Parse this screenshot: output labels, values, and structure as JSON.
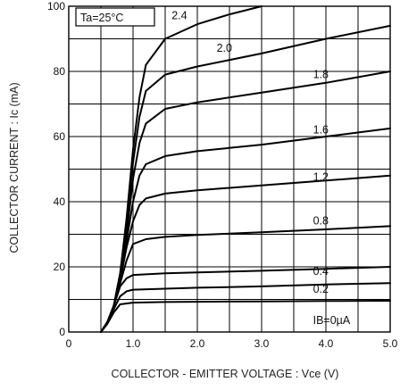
{
  "chart_data": {
    "type": "line",
    "ylabel": "COLLECTOR CURRENT : Ic (mA)",
    "xlabel": "COLLECTOR - EMITTER VOLTAGE : Vce (V)",
    "annotation": "Ta=25°C",
    "xlim": [
      0,
      5.0
    ],
    "ylim": [
      0,
      100
    ],
    "x_ticks": [
      "0",
      "1.0",
      "2.0",
      "3.0",
      "4.0",
      "5.0"
    ],
    "y_ticks": [
      "0",
      "20",
      "40",
      "60",
      "80",
      "100"
    ],
    "grid": true,
    "series": [
      {
        "label": "IB=0µA",
        "x": [
          0.5,
          0.6,
          0.7,
          0.8,
          1.0,
          1.5,
          2.0,
          3.0,
          4.0,
          5.0
        ],
        "y": [
          0,
          2.5,
          6,
          8.5,
          9.0,
          9.2,
          9.3,
          9.4,
          9.5,
          9.6
        ]
      },
      {
        "label": "0.2",
        "x": [
          0.5,
          0.6,
          0.7,
          0.8,
          0.9,
          1.0,
          1.5,
          2.0,
          3.0,
          4.0,
          5.0
        ],
        "y": [
          0,
          2.5,
          7,
          11,
          12.5,
          13.0,
          13.3,
          13.6,
          14.0,
          14.6,
          15.0
        ]
      },
      {
        "label": "0.4",
        "x": [
          0.5,
          0.6,
          0.7,
          0.8,
          0.9,
          1.0,
          1.5,
          2.0,
          3.0,
          4.0,
          5.0
        ],
        "y": [
          0,
          3,
          8,
          14,
          16.5,
          17.5,
          18.0,
          18.3,
          18.8,
          19.4,
          20.0
        ]
      },
      {
        "label": "0.8",
        "x": [
          0.5,
          0.6,
          0.7,
          0.8,
          0.9,
          1.0,
          1.2,
          1.5,
          2.0,
          3.0,
          4.0,
          5.0
        ],
        "y": [
          0,
          3,
          8,
          15,
          22,
          27,
          28.5,
          29.2,
          29.8,
          30.6,
          31.5,
          32.5
        ]
      },
      {
        "label": "1.2",
        "x": [
          0.5,
          0.6,
          0.7,
          0.8,
          0.9,
          1.0,
          1.1,
          1.2,
          1.5,
          2.0,
          3.0,
          4.0,
          5.0
        ],
        "y": [
          0,
          3,
          8,
          16,
          26,
          34,
          39,
          41,
          42.5,
          43.5,
          45,
          46.5,
          48
        ]
      },
      {
        "label": "1.6",
        "x": [
          0.5,
          0.6,
          0.7,
          0.8,
          0.9,
          1.0,
          1.1,
          1.2,
          1.5,
          2.0,
          3.0,
          4.0,
          5.0
        ],
        "y": [
          0,
          3,
          8,
          16,
          28,
          40,
          48,
          51.5,
          54,
          55.5,
          57.5,
          60,
          62.5
        ]
      },
      {
        "label": "1.8",
        "x": [
          0.5,
          0.6,
          0.7,
          0.8,
          0.9,
          1.0,
          1.1,
          1.2,
          1.5,
          2.0,
          3.0,
          4.0,
          5.0
        ],
        "y": [
          0,
          3,
          8,
          17,
          30,
          47,
          58,
          64,
          68.5,
          70.5,
          73.5,
          76.5,
          80
        ]
      },
      {
        "label": "2.0",
        "x": [
          0.5,
          0.6,
          0.7,
          0.8,
          0.9,
          1.0,
          1.1,
          1.2,
          1.5,
          2.0,
          3.0,
          4.0,
          5.0
        ],
        "y": [
          0,
          3,
          8,
          18,
          33,
          52,
          66,
          74,
          79,
          81.5,
          85.5,
          90,
          94
        ]
      },
      {
        "label": "2.4",
        "x": [
          0.5,
          0.6,
          0.7,
          0.8,
          0.9,
          1.0,
          1.1,
          1.2,
          1.5,
          2.0,
          2.5,
          3.0
        ],
        "y": [
          0,
          3,
          8,
          18,
          35,
          56,
          72,
          82,
          90,
          94.5,
          97.5,
          100
        ]
      }
    ],
    "curve_labels": [
      {
        "text": "2.4",
        "x": 1.6,
        "y": 96
      },
      {
        "text": "2.0",
        "x": 2.3,
        "y": 86
      },
      {
        "text": "1.8",
        "x": 3.8,
        "y": 78
      },
      {
        "text": "1.6",
        "x": 3.8,
        "y": 61
      },
      {
        "text": "1.2",
        "x": 3.8,
        "y": 46.5
      },
      {
        "text": "0.8",
        "x": 3.8,
        "y": 33
      },
      {
        "text": "0.4",
        "x": 3.8,
        "y": 17.5
      },
      {
        "text": "0.2",
        "x": 3.8,
        "y": 12
      },
      {
        "text": "IB=0µA",
        "x": 3.8,
        "y": 2.5
      }
    ]
  }
}
